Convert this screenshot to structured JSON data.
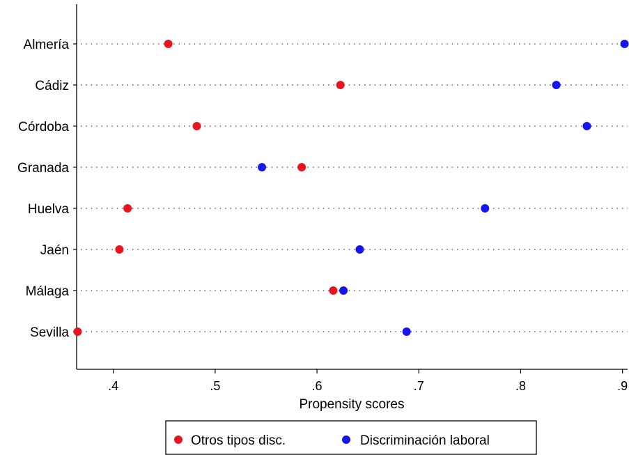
{
  "chart_data": {
    "type": "dot",
    "title": "",
    "xlabel": "Propensity scores",
    "ylabel": "",
    "xlim": [
      0.364,
      0.905
    ],
    "xticks": [
      0.4,
      0.5,
      0.6,
      0.7,
      0.8,
      0.9
    ],
    "xtick_labels": [
      ".4",
      ".5",
      ".6",
      ".7",
      ".8",
      ".9"
    ],
    "categories": [
      "Almería",
      "Cádiz",
      "Córdoba",
      "Granada",
      "Huelva",
      "Jaén",
      "Málaga",
      "Sevilla"
    ],
    "series": [
      {
        "name": "Otros tipos disc.",
        "color": "#e8151f",
        "values": [
          0.454,
          0.623,
          0.482,
          0.585,
          0.414,
          0.406,
          0.616,
          0.365
        ]
      },
      {
        "name": "Discriminación laboral",
        "color": "#1515ee",
        "values": [
          0.902,
          0.835,
          0.865,
          0.546,
          0.765,
          0.642,
          0.626,
          0.688
        ]
      }
    ],
    "grid": "dotted horizontal lines per category",
    "legend_position": "bottom-center"
  }
}
